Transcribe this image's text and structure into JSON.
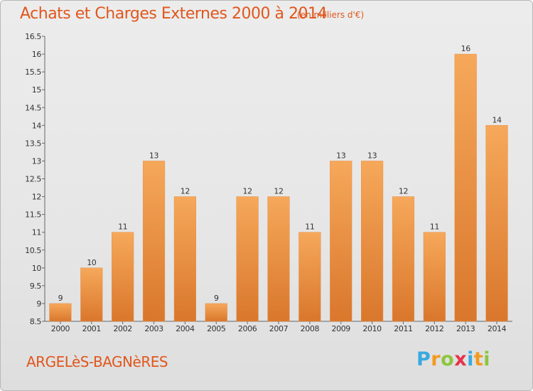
{
  "header": {
    "title": "Achats et Charges Externes 2000 à 2014",
    "unit": "(en milliers d'€)"
  },
  "footer": {
    "place": "ARGELèS-BAGNèRES",
    "logo_letters": [
      "P",
      "r",
      "o",
      "x",
      "i",
      "t",
      "i"
    ],
    "logo_colors": [
      "#3aa9e0",
      "#f29a1f",
      "#8cc63f",
      "#e8324a",
      "#3aa9e0",
      "#f29a1f",
      "#8cc63f"
    ]
  },
  "colors": {
    "bar_light": "#f6a85a",
    "bar_dark": "#d9772c",
    "text_accent": "#e0571d"
  },
  "chart_data": {
    "type": "bar",
    "categories": [
      "2000",
      "2001",
      "2002",
      "2003",
      "2004",
      "2005",
      "2006",
      "2007",
      "2008",
      "2009",
      "2010",
      "2011",
      "2012",
      "2013",
      "2014"
    ],
    "values": [
      9,
      10,
      11,
      13,
      12,
      9,
      12,
      12,
      11,
      13,
      13,
      12,
      11,
      16,
      14
    ],
    "value_labels": [
      "9",
      "10",
      "11",
      "13",
      "12",
      "9",
      "12",
      "12",
      "11",
      "13",
      "13",
      "12",
      "11",
      "16",
      "14"
    ],
    "ylim": [
      8.5,
      16.5
    ],
    "yticks": [
      "8.5",
      "9",
      "9.5",
      "10",
      "10.5",
      "11",
      "11.5",
      "12",
      "12.5",
      "13",
      "13.5",
      "14",
      "14.5",
      "15",
      "15.5",
      "16",
      "16.5"
    ],
    "grid": false
  }
}
